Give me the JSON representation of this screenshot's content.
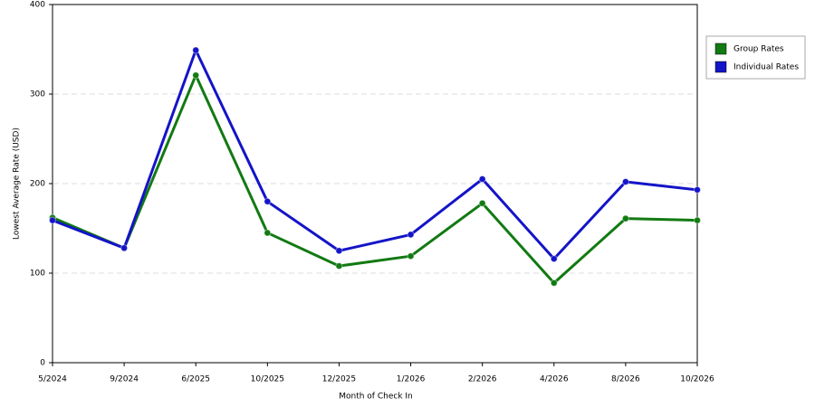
{
  "chart_data": {
    "type": "line",
    "x_label": "Month of Check In",
    "y_label": "Lowest Average Rate (USD)",
    "categories": [
      "5/2024",
      "9/2024",
      "6/2025",
      "10/2025",
      "12/2025",
      "1/2026",
      "2/2026",
      "4/2026",
      "8/2026",
      "10/2026"
    ],
    "series": [
      {
        "name": "Group Rates",
        "color": "#127a12",
        "values": [
          162,
          128,
          321,
          145,
          108,
          119,
          178,
          89,
          161,
          159
        ]
      },
      {
        "name": "Individual Rates",
        "color": "#1414c8",
        "values": [
          159,
          128,
          349,
          180,
          125,
          143,
          205,
          116,
          202,
          193
        ]
      }
    ],
    "ylim": [
      0,
      400
    ],
    "yticks": [
      0,
      100,
      200,
      300,
      400
    ],
    "grid": true,
    "legend": "top-right"
  }
}
